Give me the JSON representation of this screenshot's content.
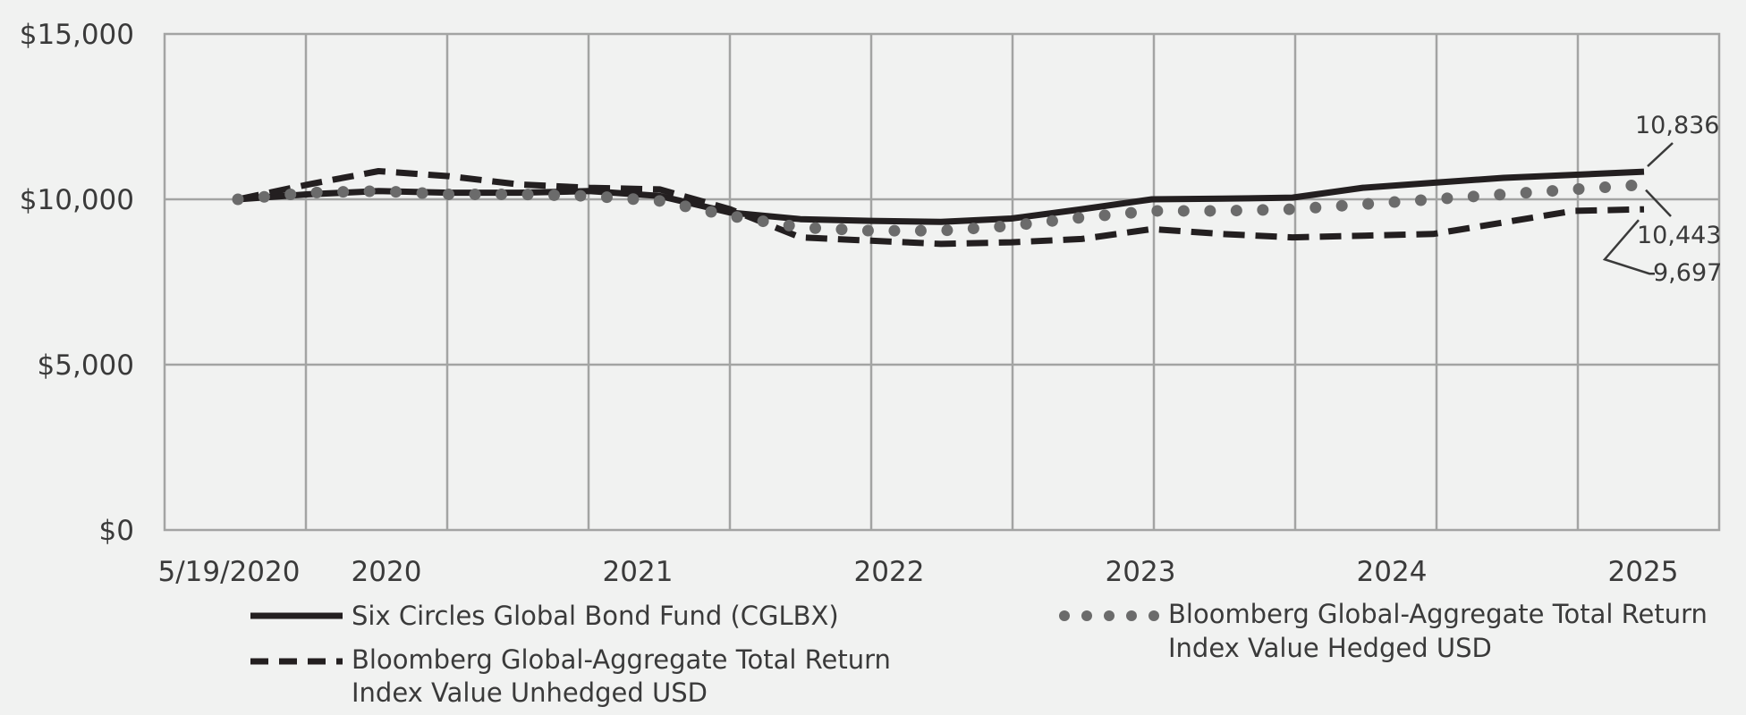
{
  "chart_data": {
    "type": "line",
    "title": "",
    "xlabel": "",
    "ylabel": "",
    "ylim": [
      0,
      15000
    ],
    "grid": true,
    "legend_position": "bottom",
    "y_ticks": [
      {
        "value": 0,
        "label": "$0"
      },
      {
        "value": 5000,
        "label": "$5,000"
      },
      {
        "value": 10000,
        "label": "$10,000"
      },
      {
        "value": 15000,
        "label": "$15,000"
      }
    ],
    "x_ticks": [
      "5/19/2020",
      "2020",
      "2021",
      "2022",
      "2023",
      "2024",
      "2025"
    ],
    "x": [
      "5/19/2020",
      "Jun 2020",
      "Sep 2020",
      "Dec 2020",
      "Mar 2021",
      "Jun 2021",
      "Sep 2021",
      "Dec 2021",
      "Mar 2022",
      "Jun 2022",
      "Sep 2022",
      "Dec 2022",
      "Mar 2023",
      "Jun 2023",
      "Sep 2023",
      "Dec 2023",
      "Mar 2024",
      "Jun 2024",
      "Sep 2024",
      "Dec 2024",
      "Mar 2025"
    ],
    "series": [
      {
        "name": "Six Circles Global Bond Fund (CGLBX)",
        "style": "solid",
        "values": [
          10000,
          10150,
          10250,
          10200,
          10200,
          10250,
          10100,
          9600,
          9400,
          9350,
          9320,
          9420,
          9700,
          10000,
          10020,
          10050,
          10350,
          10500,
          10650,
          10740,
          10836
        ],
        "end_label": "10,836"
      },
      {
        "name": "Bloomberg Global-Aggregate Total Return Index Value Unhedged USD",
        "style": "dashed",
        "values": [
          10000,
          10450,
          10850,
          10700,
          10450,
          10350,
          10300,
          9700,
          8850,
          8750,
          8650,
          8700,
          8800,
          9100,
          8950,
          8850,
          8900,
          8950,
          9300,
          9650,
          9697
        ],
        "end_label": "9,697"
      },
      {
        "name": "Bloomberg Global-Aggregate Total Return Index Value Hedged USD",
        "style": "dotted",
        "values": [
          10000,
          10200,
          10250,
          10150,
          10150,
          10100,
          9950,
          9500,
          9150,
          9050,
          9050,
          9200,
          9450,
          9650,
          9650,
          9700,
          9850,
          10000,
          10150,
          10300,
          10443
        ],
        "end_label": "10,443"
      }
    ]
  },
  "colors": {
    "background": "#f1f2f1",
    "grid": "#a3a4a3",
    "solid_line": "#231f20",
    "dashed_line": "#231f20",
    "dotted_line": "#6b6b6b",
    "text": "#3a3a3a"
  },
  "legend": {
    "solid_label": "Six Circles Global Bond Fund (CGLBX)",
    "dashed_label_line1": "Bloomberg Global-Aggregate Total Return",
    "dashed_label_line2": "Index Value Unhedged USD",
    "dotted_label_line1": "Bloomberg Global-Aggregate Total Return",
    "dotted_label_line2": "Index Value Hedged USD"
  }
}
